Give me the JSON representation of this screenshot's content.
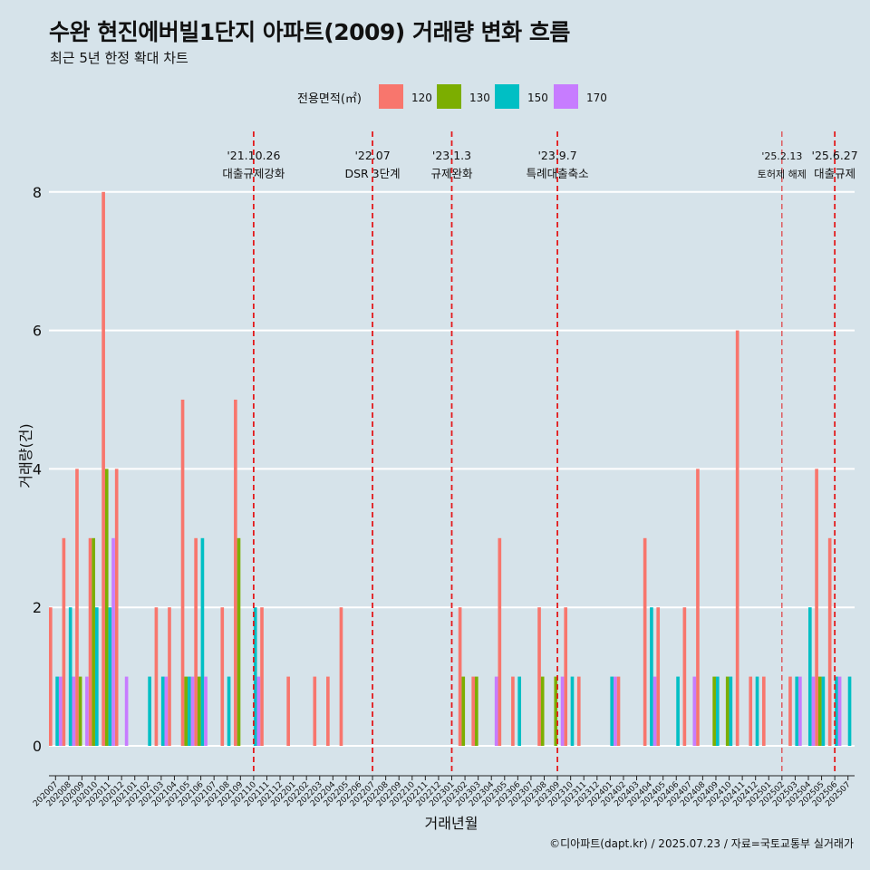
{
  "title": "수완 현진에버빌1단지 아파트(2009) 거래량 변화 흐름",
  "subtitle": "최근 5년 한정 확대 차트",
  "caption": "©디아파트(dapt.kr) / 2025.07.23 / 자료=국토교통부 실거래가",
  "colors": {
    "background": "#d6e3ea",
    "grid": "#ffffff",
    "event_line": "#e31a1c"
  },
  "chart_data": {
    "type": "bar",
    "title": "수완 현진에버빌1단지 아파트(2009) 거래량 변화 흐름",
    "subtitle": "최근 5년 한정 확대 차트",
    "xlabel": "거래년월",
    "ylabel": "거래량(건)",
    "ylim": [
      0,
      8.7
    ],
    "yticks": [
      0,
      2,
      4,
      6,
      8
    ],
    "grid": true,
    "legend": {
      "title": "전용면적(㎡)",
      "position": "top"
    },
    "categories": [
      "202007",
      "202008",
      "202009",
      "202010",
      "202011",
      "202012",
      "202101",
      "202102",
      "202103",
      "202104",
      "202105",
      "202106",
      "202107",
      "202108",
      "202109",
      "202110",
      "202111",
      "202112",
      "202201",
      "202202",
      "202203",
      "202204",
      "202205",
      "202206",
      "202207",
      "202208",
      "202209",
      "202210",
      "202211",
      "202212",
      "202301",
      "202302",
      "202303",
      "202304",
      "202305",
      "202306",
      "202307",
      "202308",
      "202309",
      "202310",
      "202311",
      "202312",
      "202401",
      "202402",
      "202403",
      "202404",
      "202405",
      "202406",
      "202407",
      "202408",
      "202409",
      "202410",
      "202411",
      "202412",
      "202501",
      "202502",
      "202503",
      "202504",
      "202505",
      "202506",
      "202507"
    ],
    "series": [
      {
        "name": "120",
        "color": "#f8766d",
        "values": [
          2,
          3,
          4,
          3,
          8,
          4,
          0,
          0,
          2,
          2,
          5,
          3,
          0,
          2,
          5,
          0,
          2,
          0,
          1,
          0,
          1,
          1,
          2,
          0,
          0,
          0,
          0,
          0,
          0,
          0,
          0,
          2,
          1,
          0,
          3,
          1,
          0,
          2,
          0,
          2,
          1,
          0,
          0,
          1,
          0,
          3,
          2,
          0,
          2,
          4,
          0,
          0,
          6,
          1,
          1,
          0,
          1,
          0,
          4,
          3,
          0
        ]
      },
      {
        "name": "130",
        "color": "#7cae00",
        "values": [
          0,
          0,
          1,
          3,
          4,
          0,
          0,
          0,
          0,
          0,
          1,
          1,
          0,
          0,
          3,
          0,
          0,
          0,
          0,
          0,
          0,
          0,
          0,
          0,
          0,
          0,
          0,
          0,
          0,
          0,
          0,
          1,
          1,
          0,
          0,
          0,
          0,
          1,
          1,
          0,
          0,
          0,
          0,
          0,
          0,
          0,
          0,
          0,
          0,
          0,
          1,
          1,
          0,
          0,
          0,
          0,
          0,
          0,
          1,
          0,
          0
        ]
      },
      {
        "name": "150",
        "color": "#00bfc4",
        "values": [
          1,
          2,
          0,
          2,
          2,
          0,
          0,
          1,
          1,
          0,
          1,
          3,
          0,
          1,
          0,
          2,
          0,
          0,
          0,
          0,
          0,
          0,
          0,
          0,
          0,
          0,
          0,
          0,
          0,
          0,
          0,
          0,
          0,
          0,
          0,
          1,
          0,
          0,
          0,
          1,
          0,
          0,
          1,
          0,
          0,
          2,
          0,
          1,
          0,
          0,
          1,
          1,
          0,
          1,
          0,
          0,
          1,
          2,
          1,
          1,
          1
        ]
      },
      {
        "name": "170",
        "color": "#c77cff",
        "values": [
          1,
          1,
          1,
          0,
          3,
          1,
          0,
          0,
          1,
          0,
          1,
          1,
          0,
          0,
          0,
          1,
          0,
          0,
          0,
          0,
          0,
          0,
          0,
          0,
          0,
          0,
          0,
          0,
          0,
          0,
          0,
          0,
          0,
          1,
          0,
          0,
          0,
          0,
          1,
          0,
          0,
          0,
          1,
          0,
          0,
          1,
          0,
          0,
          1,
          0,
          0,
          0,
          0,
          0,
          0,
          0,
          1,
          1,
          0,
          1,
          0
        ]
      }
    ],
    "events": [
      {
        "date": "'21.10.26",
        "label": "대출규제강화",
        "at": "202110",
        "style": "dashed"
      },
      {
        "date": "'22.07",
        "label": "DSR 3단계",
        "at": "202207",
        "style": "dashed"
      },
      {
        "date": "'23.1.3",
        "label": "규제완화",
        "at": "202301",
        "style": "dashed"
      },
      {
        "date": "'23.9.7",
        "label": "특례대출축소",
        "at": "202309",
        "style": "dashed"
      },
      {
        "date": "'25.2.13",
        "label": "토허제 해제",
        "at": "202502",
        "style": "thin"
      },
      {
        "date": "'25.6.27",
        "label": "대출규제",
        "at": "202506",
        "style": "dashed"
      }
    ]
  }
}
